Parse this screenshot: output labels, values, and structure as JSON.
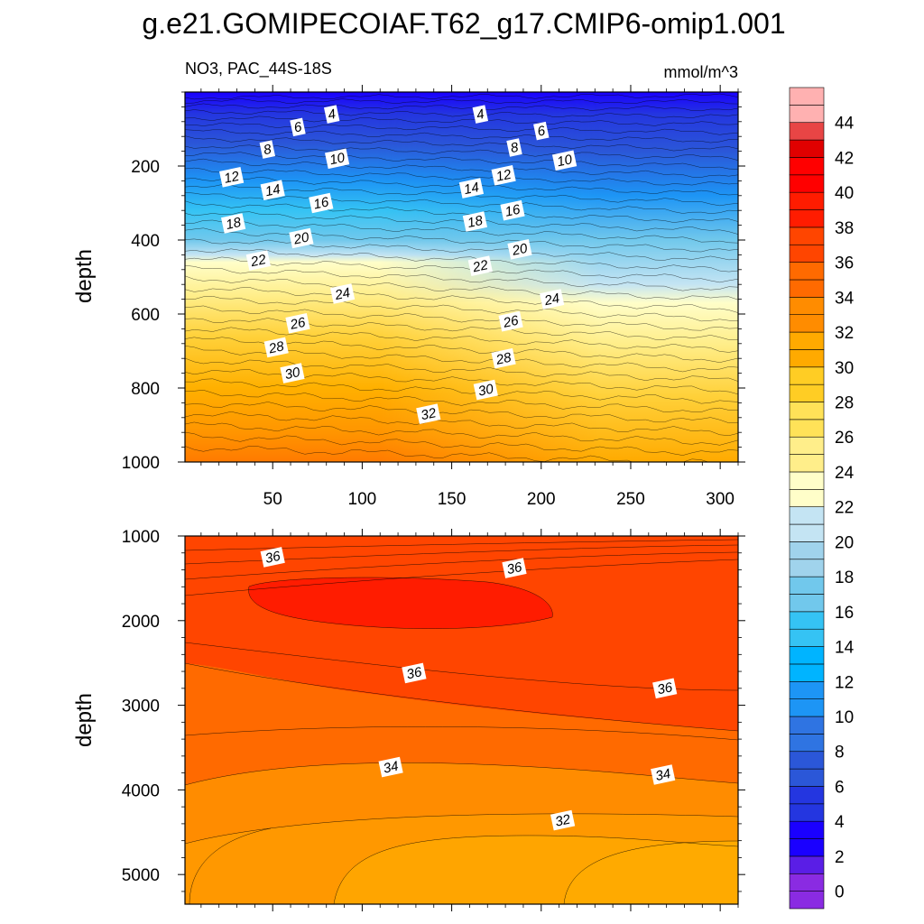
{
  "title": "g.e21.GOMIPECOIAF.T62_g17.CMIP6-omip1.001",
  "subtitle_left": "NO3, PAC_44S-18S",
  "subtitle_right": "mmol/m^3",
  "colors": {
    "c0": "#8a2be2",
    "c2": "#5a1ee6",
    "c4": "#1a00ff",
    "c6": "#2436e0",
    "c8": "#2b57d8",
    "c10": "#2f74e2",
    "c12": "#1d95f5",
    "c14": "#00b4ff",
    "c16": "#35c3f4",
    "c18": "#71c8ec",
    "c20": "#a0d3ec",
    "c22": "#c4e4f3",
    "c22b": "#fffec9",
    "c24": "#ffee8a",
    "c26": "#ffe258",
    "c28": "#ffcd24",
    "c30": "#ffaa00",
    "c32": "#ff8c00",
    "c34": "#ff6a00",
    "c36": "#ff4500",
    "c38": "#ff1c00",
    "c40": "#ff0000",
    "c42": "#e00000",
    "c44": "#e84545",
    "c46": "#ffb1b1"
  },
  "chart_data": [
    {
      "type": "contour",
      "panel": "upper",
      "xlabel": "",
      "ylabel": "depth",
      "xlim": [
        1,
        310
      ],
      "ylim": [
        1000,
        0
      ],
      "xticks": [
        50,
        100,
        150,
        200,
        250,
        300
      ],
      "yticks": [
        200,
        400,
        600,
        800,
        1000
      ],
      "contour_labels": [
        {
          "x": 83,
          "y": 60,
          "text": "4"
        },
        {
          "x": 166,
          "y": 60,
          "text": "4"
        },
        {
          "x": 64,
          "y": 95,
          "text": "6"
        },
        {
          "x": 200,
          "y": 105,
          "text": "6"
        },
        {
          "x": 47,
          "y": 155,
          "text": "8"
        },
        {
          "x": 185,
          "y": 150,
          "text": "8"
        },
        {
          "x": 86,
          "y": 180,
          "text": "10"
        },
        {
          "x": 213,
          "y": 185,
          "text": "10"
        },
        {
          "x": 27,
          "y": 230,
          "text": "12"
        },
        {
          "x": 179,
          "y": 225,
          "text": "12"
        },
        {
          "x": 50,
          "y": 265,
          "text": "14"
        },
        {
          "x": 161,
          "y": 260,
          "text": "14"
        },
        {
          "x": 77,
          "y": 300,
          "text": "16"
        },
        {
          "x": 184,
          "y": 320,
          "text": "16"
        },
        {
          "x": 28,
          "y": 355,
          "text": "18"
        },
        {
          "x": 163,
          "y": 350,
          "text": "18"
        },
        {
          "x": 66,
          "y": 395,
          "text": "20"
        },
        {
          "x": 188,
          "y": 425,
          "text": "20"
        },
        {
          "x": 42,
          "y": 455,
          "text": "22"
        },
        {
          "x": 166,
          "y": 470,
          "text": "22"
        },
        {
          "x": 89,
          "y": 545,
          "text": "24"
        },
        {
          "x": 206,
          "y": 560,
          "text": "24"
        },
        {
          "x": 64,
          "y": 625,
          "text": "26"
        },
        {
          "x": 183,
          "y": 620,
          "text": "26"
        },
        {
          "x": 52,
          "y": 690,
          "text": "28"
        },
        {
          "x": 179,
          "y": 720,
          "text": "28"
        },
        {
          "x": 61,
          "y": 760,
          "text": "30"
        },
        {
          "x": 169,
          "y": 805,
          "text": "30"
        },
        {
          "x": 137,
          "y": 870,
          "text": "32"
        }
      ]
    },
    {
      "type": "contour",
      "panel": "lower",
      "xlabel": "",
      "ylabel": "depth",
      "xlim": [
        1,
        310
      ],
      "ylim": [
        5350,
        1000
      ],
      "xticks": [
        50,
        100,
        150,
        200,
        250,
        300
      ],
      "yticks": [
        1000,
        2000,
        3000,
        4000,
        5000
      ],
      "contour_labels": [
        {
          "x": 50,
          "y": 1250,
          "text": "36"
        },
        {
          "x": 185,
          "y": 1380,
          "text": "36"
        },
        {
          "x": 129,
          "y": 2620,
          "text": "36"
        },
        {
          "x": 269,
          "y": 2800,
          "text": "36"
        },
        {
          "x": 116,
          "y": 3730,
          "text": "34"
        },
        {
          "x": 268,
          "y": 3820,
          "text": "34"
        },
        {
          "x": 212,
          "y": 4360,
          "text": "32"
        }
      ]
    }
  ],
  "colorbar": {
    "labels": [
      "0",
      "2",
      "4",
      "6",
      "8",
      "10",
      "12",
      "14",
      "16",
      "18",
      "20",
      "22",
      "24",
      "26",
      "28",
      "30",
      "32",
      "34",
      "36",
      "38",
      "40",
      "42",
      "44"
    ],
    "min": 0,
    "max": 46,
    "step": 2
  }
}
